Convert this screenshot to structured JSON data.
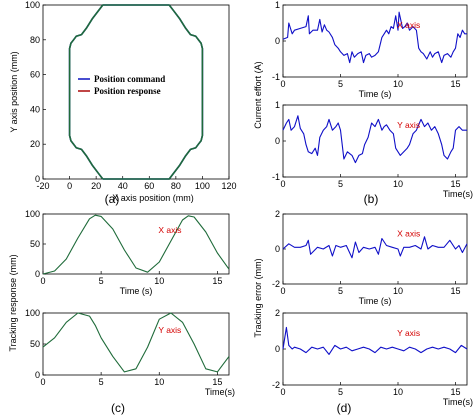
{
  "colors": {
    "command": "#1b22c4",
    "response": "#b01818",
    "tracking": "#1f6b3a",
    "signal": "#1010c8",
    "annotation": "#d40000"
  },
  "panel_labels": [
    "(a)",
    "(b)",
    "(c)",
    "(d)"
  ],
  "chart_data": [
    {
      "id": "a",
      "type": "line",
      "xlabel": "X axis position (mm)",
      "ylabel": "Y axis position (mm)",
      "xlim": [
        -20,
        120
      ],
      "ylim": [
        0,
        100
      ],
      "xticks": [
        -20,
        0,
        20,
        40,
        60,
        80,
        100,
        120
      ],
      "yticks": [
        0,
        20,
        40,
        60,
        80,
        100
      ],
      "grid": false,
      "legend_position": "center",
      "series": [
        {
          "name": "Position command",
          "x": [
            25,
            75,
            78,
            83,
            87,
            91,
            95,
            97,
            99,
            100,
            100,
            99,
            97,
            95,
            91,
            87,
            83,
            78,
            75,
            25,
            22,
            17,
            13,
            9,
            5,
            3,
            1,
            0,
            0,
            1,
            3,
            5,
            9,
            13,
            17,
            22,
            25
          ],
          "y": [
            0,
            0,
            3,
            8,
            13,
            17,
            18,
            20,
            22,
            25,
            75,
            78,
            80,
            82,
            83,
            87,
            92,
            97,
            100,
            100,
            97,
            92,
            87,
            83,
            82,
            80,
            78,
            75,
            25,
            22,
            20,
            18,
            17,
            13,
            8,
            3,
            0
          ]
        },
        {
          "name": "Position response",
          "x": [
            25,
            75,
            78,
            83,
            87,
            91,
            95,
            97,
            99,
            100,
            100,
            99,
            97,
            95,
            91,
            87,
            83,
            78,
            75,
            25,
            22,
            17,
            13,
            9,
            5,
            3,
            1,
            0,
            0,
            1,
            3,
            5,
            9,
            13,
            17,
            22,
            25
          ],
          "y": [
            0,
            0,
            3,
            8,
            13,
            17,
            18,
            20,
            22,
            25,
            75,
            78,
            80,
            82,
            83,
            87,
            92,
            97,
            100,
            100,
            97,
            92,
            87,
            83,
            82,
            80,
            78,
            75,
            25,
            22,
            20,
            18,
            17,
            13,
            8,
            3,
            0
          ]
        }
      ]
    },
    {
      "id": "b_top",
      "type": "line",
      "xlim": [
        0,
        16
      ],
      "ylim": [
        -1,
        1
      ],
      "xticks": [
        0,
        5,
        10,
        15
      ],
      "yticks": [
        -1,
        0,
        1
      ],
      "xlabel": "Time (s)",
      "annotation": "X axis",
      "series": [
        {
          "x": [
            0,
            0.4,
            0.5,
            0.8,
            1.0,
            1.5,
            2.0,
            2.2,
            2.3,
            2.6,
            3.0,
            3.2,
            3.4,
            3.6,
            3.8,
            4.0,
            4.3,
            4.5,
            4.8,
            5.0,
            5.3,
            5.6,
            5.8,
            6.0,
            6.2,
            6.5,
            6.8,
            7.0,
            7.2,
            7.5,
            7.7,
            8.0,
            8.3,
            8.6,
            8.8,
            9.0,
            9.2,
            9.4,
            9.6,
            9.8,
            10.0,
            10.1,
            10.4,
            10.6,
            10.8,
            11.0,
            11.3,
            11.6,
            11.8,
            12.0,
            12.2,
            12.5,
            12.8,
            13.0,
            13.2,
            13.5,
            13.8,
            14.0,
            14.3,
            14.6,
            14.8,
            15.0,
            15.2,
            15.4,
            15.6,
            15.8,
            16.0
          ],
          "y": [
            0.05,
            0.1,
            0.5,
            0.2,
            0.3,
            0.35,
            0.4,
            0.7,
            0.2,
            0.3,
            0.3,
            0.6,
            0.25,
            0.45,
            0.3,
            0.25,
            0.1,
            -0.1,
            -0.2,
            -0.3,
            -0.4,
            -0.35,
            -0.6,
            -0.3,
            -0.45,
            -0.35,
            -0.3,
            -0.6,
            -0.4,
            -0.35,
            -0.45,
            -0.4,
            -0.3,
            0.1,
            0.2,
            0.3,
            0.2,
            0.4,
            0.35,
            0.7,
            0.3,
            0.8,
            0.35,
            0.4,
            0.5,
            0.3,
            0.4,
            0.3,
            -0.2,
            -0.3,
            -0.35,
            -0.5,
            -0.3,
            -0.45,
            -0.35,
            -0.3,
            -0.6,
            -0.4,
            -0.35,
            -0.45,
            -0.3,
            -0.2,
            0.2,
            0.1,
            0.3,
            0.2,
            0.2
          ]
        }
      ]
    },
    {
      "id": "b_bottom",
      "type": "line",
      "xlim": [
        0,
        16
      ],
      "ylim": [
        -1,
        1
      ],
      "xticks": [
        0,
        5,
        10,
        15
      ],
      "yticks": [
        -1,
        0,
        1
      ],
      "xlabel": "Time(s)",
      "ylabel": "Current effort (A)",
      "annotation": "Y axis",
      "series": [
        {
          "x": [
            0,
            0.3,
            0.5,
            0.7,
            1.0,
            1.3,
            1.5,
            1.8,
            2.0,
            2.2,
            2.5,
            2.8,
            3.0,
            3.2,
            3.5,
            3.8,
            4.0,
            4.3,
            4.6,
            4.8,
            5.0,
            5.3,
            5.6,
            6.0,
            6.3,
            6.6,
            6.9,
            7.1,
            7.4,
            7.7,
            8.0,
            8.3,
            8.6,
            8.8,
            9.0,
            9.3,
            9.6,
            9.8,
            10.0,
            10.2,
            10.5,
            10.8,
            11.0,
            11.3,
            11.6,
            12.0,
            12.3,
            12.6,
            12.9,
            13.2,
            13.5,
            13.8,
            14.0,
            14.3,
            14.6,
            14.8,
            15.0,
            15.3,
            15.6,
            16.0
          ],
          "y": [
            0.3,
            0.5,
            0.6,
            0.3,
            0.4,
            0.7,
            0.35,
            0.2,
            -0.1,
            -0.3,
            -0.35,
            -0.2,
            -0.4,
            0.1,
            0.3,
            0.4,
            0.6,
            0.3,
            0.4,
            0.5,
            0.3,
            -0.5,
            -0.3,
            -0.4,
            -0.6,
            -0.4,
            -0.35,
            -0.1,
            0.1,
            0.5,
            0.4,
            0.6,
            0.3,
            0.4,
            0.45,
            0.3,
            0.2,
            -0.2,
            -0.3,
            -0.4,
            -0.3,
            -0.2,
            -0.1,
            0.2,
            0.3,
            0.6,
            0.4,
            0.5,
            0.3,
            0.4,
            0.2,
            -0.1,
            -0.4,
            -0.5,
            -0.3,
            -0.2,
            0.3,
            0.4,
            0.3,
            0.3
          ]
        }
      ]
    },
    {
      "id": "c_top",
      "type": "line",
      "xlim": [
        0,
        16
      ],
      "ylim": [
        0,
        100
      ],
      "xticks": [
        0,
        5,
        10,
        15
      ],
      "yticks": [
        0,
        50,
        100
      ],
      "xlabel": "Time (s)",
      "annotation": "X axis",
      "series": [
        {
          "x": [
            0,
            1,
            2,
            3,
            4,
            4.5,
            5,
            6,
            7,
            8,
            9,
            10,
            11,
            12,
            12.5,
            13,
            14,
            15,
            16
          ],
          "y": [
            0,
            5,
            25,
            60,
            92,
            98,
            96,
            75,
            40,
            10,
            3,
            20,
            55,
            90,
            97,
            95,
            70,
            35,
            8
          ]
        }
      ]
    },
    {
      "id": "c_bottom",
      "type": "line",
      "xlim": [
        0,
        16
      ],
      "ylim": [
        0,
        100
      ],
      "xticks": [
        0,
        5,
        10,
        15
      ],
      "yticks": [
        0,
        50,
        100
      ],
      "xlabel": "Time(s)",
      "ylabel": "Tracking response (mm)",
      "annotation": "Y axis",
      "series": [
        {
          "x": [
            0,
            1,
            2,
            3,
            4,
            4.5,
            5,
            6,
            7,
            8,
            9,
            10,
            11,
            12,
            13,
            14,
            15,
            16
          ],
          "y": [
            45,
            60,
            85,
            100,
            95,
            80,
            60,
            30,
            5,
            10,
            45,
            90,
            100,
            85,
            50,
            10,
            5,
            30
          ]
        }
      ]
    },
    {
      "id": "d_top",
      "type": "line",
      "xlim": [
        0,
        16
      ],
      "ylim": [
        -2,
        2
      ],
      "xticks": [
        0,
        5,
        10,
        15
      ],
      "yticks": [
        -2,
        0,
        2
      ],
      "xlabel": "Time (s)",
      "annotation": "X axis",
      "series": [
        {
          "x": [
            0,
            0.5,
            1.0,
            1.5,
            2.0,
            2.2,
            2.4,
            3.0,
            3.5,
            4.0,
            4.3,
            4.6,
            5.0,
            5.5,
            6.0,
            6.3,
            6.6,
            7.0,
            7.5,
            8.0,
            8.3,
            8.6,
            9.0,
            9.5,
            10.0,
            10.2,
            10.5,
            11.0,
            11.5,
            12.0,
            12.3,
            12.6,
            13.0,
            13.5,
            14.0,
            14.5,
            15.0,
            15.3,
            15.6,
            16.0
          ],
          "y": [
            0.0,
            0.3,
            0.1,
            0.1,
            0.2,
            0.5,
            -0.3,
            0.1,
            0.0,
            0.2,
            -0.4,
            0.2,
            0.1,
            0.2,
            -0.5,
            0.4,
            -0.2,
            0.1,
            0.0,
            0.1,
            -0.3,
            0.6,
            0.2,
            0.1,
            0.0,
            -0.4,
            0.1,
            0.1,
            0.2,
            0.0,
            0.7,
            0.0,
            0.2,
            0.1,
            0.1,
            0.5,
            0.0,
            0.2,
            -0.2,
            0.3
          ]
        }
      ]
    },
    {
      "id": "d_bottom",
      "type": "line",
      "xlim": [
        0,
        16
      ],
      "ylim": [
        -2,
        2
      ],
      "xticks": [
        0,
        5,
        10,
        15
      ],
      "yticks": [
        -2,
        0,
        2
      ],
      "xlabel": "Time(s)",
      "ylabel": "Tracking error (mm)",
      "annotation": "Y axis",
      "series": [
        {
          "x": [
            0,
            0.3,
            0.5,
            0.8,
            1.0,
            1.5,
            2.0,
            2.5,
            3.0,
            3.5,
            4.0,
            4.5,
            5.0,
            5.5,
            6.0,
            6.5,
            7.0,
            7.5,
            8.0,
            8.5,
            9.0,
            9.5,
            10.0,
            10.5,
            11.0,
            11.5,
            12.0,
            12.5,
            13.0,
            13.5,
            14.0,
            14.5,
            15.0,
            15.5,
            16.0
          ],
          "y": [
            0.0,
            1.2,
            0.2,
            0.0,
            0.1,
            0.0,
            -0.2,
            0.1,
            0.0,
            0.1,
            -0.3,
            0.2,
            0.0,
            0.1,
            -0.1,
            0.0,
            0.1,
            0.0,
            -0.2,
            0.1,
            0.0,
            0.1,
            0.0,
            -0.1,
            0.1,
            0.0,
            -0.2,
            0.0,
            0.1,
            0.0,
            0.1,
            0.0,
            -0.2,
            0.2,
            0.0
          ]
        }
      ]
    }
  ]
}
